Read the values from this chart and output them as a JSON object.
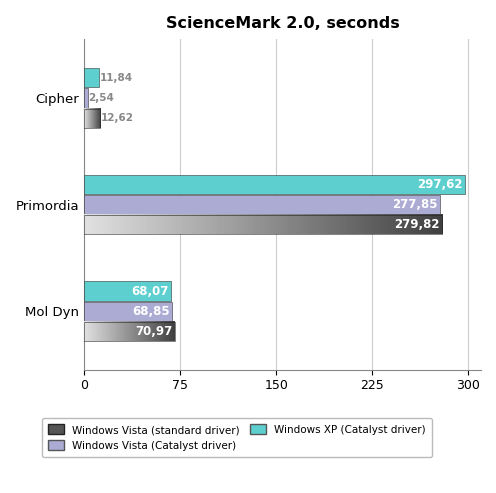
{
  "title": "ScienceMark 2.0, seconds",
  "categories": [
    "Cipher",
    "Primordia",
    "Mol Dyn"
  ],
  "series_order": [
    "xp_catalyst",
    "vista_catalyst",
    "vista_standard"
  ],
  "series": {
    "xp_catalyst": {
      "label": "Windows XP (Catalyst driver)",
      "color": "#5ECFCF",
      "values": [
        11.84,
        297.62,
        68.07
      ]
    },
    "vista_catalyst": {
      "label": "Windows Vista (Catalyst driver)",
      "color": "#ABABD4",
      "values": [
        2.54,
        277.85,
        68.85
      ]
    },
    "vista_standard": {
      "label": "Windows Vista (standard driver)",
      "color_start": "#E0E0E0",
      "color_end": "#404040",
      "values": [
        12.62,
        279.82,
        70.97
      ]
    }
  },
  "xlim": [
    0,
    310
  ],
  "xticks": [
    0,
    75,
    150,
    225,
    300
  ],
  "bar_height": 0.18,
  "bg_color": "#FFFFFF",
  "plot_bg": "#FFFFFF",
  "grid_color": "#CCCCCC",
  "label_cipher": [
    "11,84",
    "2,54",
    "12,62"
  ],
  "label_primordia": [
    "297,62",
    "277,85",
    "279,82"
  ],
  "label_moldyn": [
    "68,07",
    "68,85",
    "70,97"
  ]
}
